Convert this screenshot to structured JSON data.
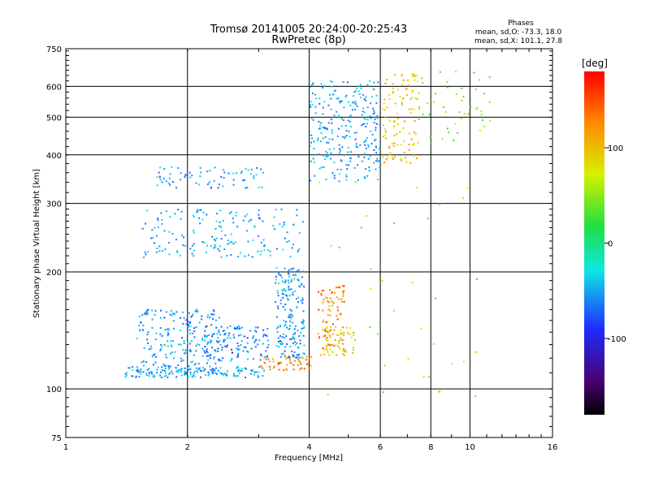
{
  "chart_data": {
    "type": "scatter",
    "title": "Tromsø 20141005 20:24:00-20:25:43",
    "subtitle": "RwPretec (8p)",
    "xlabel": "Frequency [MHz]",
    "ylabel": "Stationary phase Virtual Height [km]",
    "xscale": "log",
    "yscale": "log",
    "xlim": [
      1,
      16
    ],
    "ylim": [
      75,
      750
    ],
    "xticks": [
      1,
      2,
      4,
      6,
      8,
      10,
      16
    ],
    "yticks": [
      75,
      100,
      200,
      300,
      400,
      500,
      600,
      750
    ],
    "grid": true,
    "stats": {
      "title": "Phases",
      "line1": "mean, sd,O: -73.3, 18.0",
      "line2": "mean, sd,X: 101.1, 27.8"
    },
    "colorbar": {
      "label": "[deg]",
      "range": [
        -180,
        180
      ],
      "ticks": [
        -100,
        0,
        100
      ]
    },
    "clusters": [
      {
        "name": "E-layer trace",
        "x_range": [
          1.4,
          3.1
        ],
        "y_range": [
          107,
          114
        ],
        "color_value": -60,
        "count": 140
      },
      {
        "name": "E-layer trace ordinary",
        "x_range": [
          3.0,
          4.1
        ],
        "y_range": [
          111,
          122
        ],
        "color_value": 130,
        "count": 60
      },
      {
        "name": "Lower spread cloud",
        "x_range": [
          1.5,
          2.4
        ],
        "y_range": [
          110,
          160
        ],
        "color_value": -70,
        "count": 220
      },
      {
        "name": "Mid spread cloud",
        "x_range": [
          2.2,
          3.2
        ],
        "y_range": [
          118,
          145
        ],
        "color_value": -75,
        "count": 120
      },
      {
        "name": "Cusp rising trace",
        "x_range": [
          3.3,
          3.9
        ],
        "y_range": [
          120,
          205
        ],
        "color_value": -65,
        "count": 180
      },
      {
        "name": "Orange cusp",
        "x_range": [
          4.2,
          4.9
        ],
        "y_range": [
          122,
          185
        ],
        "color_value": 130,
        "count": 90
      },
      {
        "name": "Yellow cusp",
        "x_range": [
          4.4,
          5.2
        ],
        "y_range": [
          122,
          145
        ],
        "color_value": 85,
        "count": 50
      },
      {
        "name": "Lower F-layer trace",
        "x_range": [
          1.55,
          3.9
        ],
        "y_range": [
          217,
          290
        ],
        "color_value": -60,
        "count": 170
      },
      {
        "name": "Upper F-layer trace",
        "x_range": [
          1.65,
          3.1
        ],
        "y_range": [
          328,
          375
        ],
        "color_value": -60,
        "count": 70
      },
      {
        "name": "F2 spread cloud",
        "x_range": [
          4.0,
          6.0
        ],
        "y_range": [
          340,
          620
        ],
        "color_value": -60,
        "count": 260
      },
      {
        "name": "F2 yellow cloud",
        "x_range": [
          6.1,
          7.5
        ],
        "y_range": [
          380,
          650
        ],
        "color_value": 95,
        "count": 110
      },
      {
        "name": "Sparse high-frequency echoes",
        "x_range": [
          7.5,
          11.5
        ],
        "y_range": [
          420,
          660
        ],
        "color_value": 30,
        "count": 45
      },
      {
        "name": "Scattered background noise",
        "x_range": [
          4.2,
          10.5
        ],
        "y_range": [
          80,
          400
        ],
        "color_value": 50,
        "count": 40
      }
    ]
  }
}
